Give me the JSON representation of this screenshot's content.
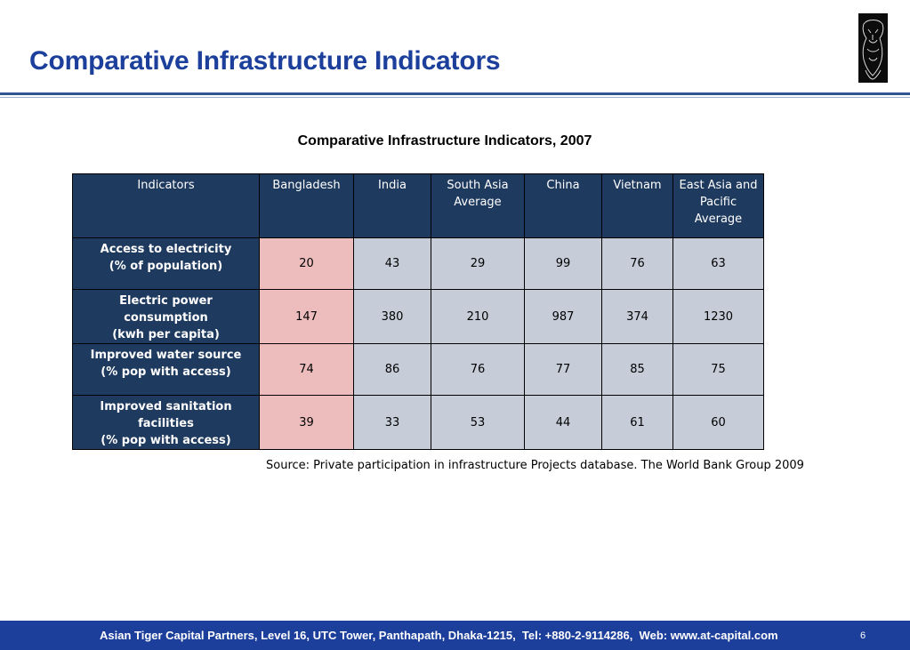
{
  "slide": {
    "title": "Comparative Infrastructure Indicators",
    "logo_icon": "tiger-logo-icon"
  },
  "table": {
    "title": "Comparative Infrastructure Indicators, 2007",
    "headers": [
      "Indicators",
      "Bangladesh",
      "India",
      "South Asia\nAverage",
      "China",
      "Vietnam",
      "East Asia and\nPacific\nAverage"
    ],
    "rows": [
      {
        "indicator": "Access to electricity\n(% of population)",
        "values": [
          "20",
          "43",
          "29",
          "99",
          "76",
          "63"
        ]
      },
      {
        "indicator": "Electric power  consumption\n(kwh per capita)",
        "values": [
          "147",
          "380",
          "210",
          "987",
          "374",
          "1230"
        ]
      },
      {
        "indicator": "Improved water source\n(% pop with access)",
        "values": [
          "74",
          "86",
          "76",
          "77",
          "85",
          "75"
        ]
      },
      {
        "indicator": "Improved sanitation facilities\n(% pop with access)",
        "values": [
          "39",
          "33",
          "53",
          "44",
          "61",
          "60"
        ]
      }
    ],
    "colors": {
      "header_bg": "#1f3a5f",
      "cell_bg": "#c6cdd8",
      "highlight_bg": "#edbdbd"
    }
  },
  "source": "Source: Private participation in infrastructure Projects database. The World Bank Group 2009",
  "footer": {
    "text": "Asian Tiger Capital Partners, Level 16, UTC Tower, Panthapath, Dhaka-1215,  Tel: +880-2-9114286,  Web: www.at-capital.com",
    "page": "6",
    "bg": "#1d3f9c"
  }
}
